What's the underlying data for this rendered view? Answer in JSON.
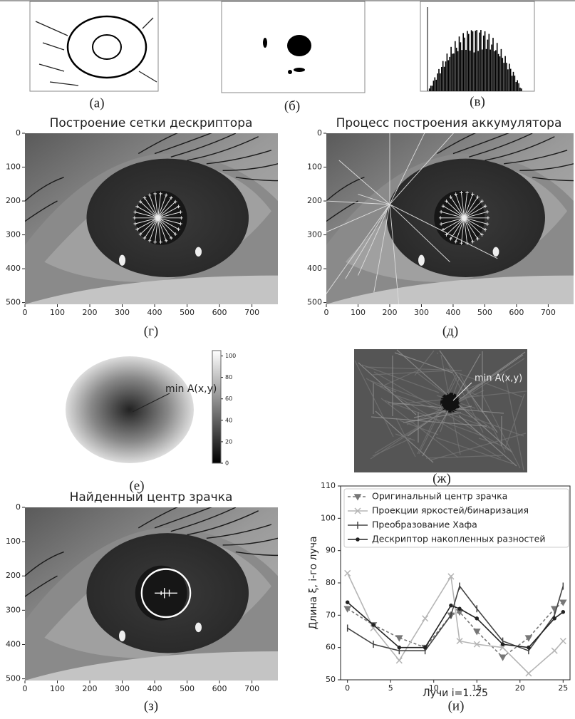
{
  "panels": {
    "a": {
      "label": "(а)"
    },
    "b": {
      "label": "(б)"
    },
    "v": {
      "label": "(в)"
    },
    "g": {
      "label": "(г)",
      "title": "Построение сетки дескриптора"
    },
    "d": {
      "label": "(д)",
      "title": "Процесс построения аккумулятора"
    },
    "e": {
      "label": "(е)",
      "annotation": "min A(x,y)",
      "colorbar_lim": [
        0,
        105
      ],
      "colorbar_ticks": [
        0,
        20,
        40,
        60,
        80,
        100
      ]
    },
    "zh": {
      "label": "(ж)",
      "annotation": "min A(x,y)"
    },
    "z": {
      "label": "(з)",
      "title": "Найденный центр зрачка"
    },
    "i": {
      "label": "(и)"
    }
  },
  "image_axes": {
    "xlim": [
      0,
      780
    ],
    "ylim": [
      505,
      0
    ],
    "xticks": [
      0,
      100,
      200,
      300,
      400,
      500,
      600,
      700
    ],
    "yticks": [
      0,
      100,
      200,
      300,
      400,
      500
    ]
  },
  "chart_data": {
    "type": "line",
    "x_label": "Лучи i=1..25",
    "y_label": "Длина ξ, i-го луча",
    "x": [
      0,
      3,
      6,
      9,
      12,
      13,
      15,
      18,
      21,
      24,
      25
    ],
    "xlim": [
      -0.8,
      25.8
    ],
    "ylim": [
      50,
      110
    ],
    "xticks": [
      0,
      5,
      10,
      15,
      20,
      25
    ],
    "yticks": [
      50,
      60,
      70,
      80,
      90,
      100,
      110
    ],
    "series": [
      {
        "name": "Оригинальный центр зрачка",
        "color": "#777777",
        "marker": "triangle",
        "dashed": true,
        "values": [
          72,
          67,
          63,
          60,
          70,
          71,
          65,
          57,
          63,
          72,
          74
        ]
      },
      {
        "name": "Проекции яркостей/бинаризация",
        "color": "#b5b5b5",
        "marker": "x",
        "dashed": false,
        "values": [
          83,
          66,
          56,
          69,
          82,
          62,
          61,
          60,
          52,
          59,
          62
        ]
      },
      {
        "name": "Преобразование Хафа",
        "color": "#444444",
        "marker": "bar",
        "dashed": false,
        "values": [
          66,
          61,
          59,
          59,
          70,
          79,
          72,
          62,
          59,
          70,
          79
        ]
      },
      {
        "name": "Дескриптор накопленных разностей",
        "color": "#222222",
        "marker": "dot",
        "dashed": false,
        "values": [
          74,
          67,
          60,
          60,
          73,
          72,
          69,
          61,
          60,
          69,
          71
        ]
      }
    ]
  }
}
